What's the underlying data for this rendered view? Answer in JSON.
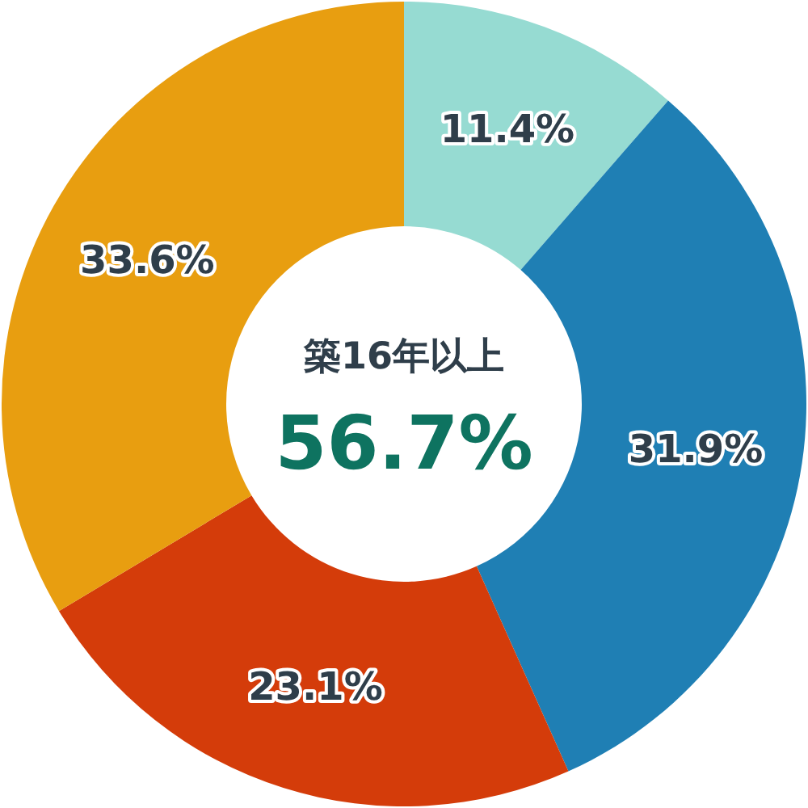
{
  "chart_data": {
    "type": "donut",
    "title": "築16年以上",
    "annotations": [
      "56.7%"
    ],
    "categories": [
      null,
      null,
      null,
      null
    ],
    "values": [
      11.4,
      31.9,
      23.1,
      33.6
    ],
    "colors": [
      "#96dbd2",
      "#1f7fb4",
      "#d43c0a",
      "#e89e10"
    ],
    "value_labels": [
      "11.4%",
      "31.9%",
      "23.1%",
      "33.6%"
    ]
  }
}
